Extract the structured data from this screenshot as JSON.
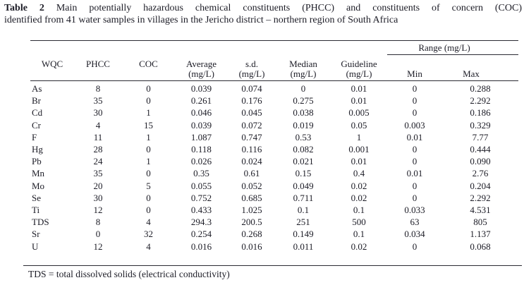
{
  "title": {
    "label": "Table 2",
    "line1_rest": "Main potentially hazardous chemical constituents (PHCC) and constituents of concern (COC)",
    "line2": "identified from 41 water samples in villages in the Jericho district – northern region of South Africa"
  },
  "table": {
    "range_header": "Range (mg/L)",
    "columns": [
      {
        "label": "WQC",
        "unit": ""
      },
      {
        "label": "PHCC",
        "unit": ""
      },
      {
        "label": "COC",
        "unit": ""
      },
      {
        "label": "Average",
        "unit": "(mg/L)"
      },
      {
        "label": "s.d.",
        "unit": "(mg/L)"
      },
      {
        "label": "Median",
        "unit": "(mg/L)"
      },
      {
        "label": "Guideline",
        "unit": "(mg/L)"
      },
      {
        "label": "Min",
        "unit": ""
      },
      {
        "label": "Max",
        "unit": ""
      }
    ],
    "rows": [
      [
        "As",
        "8",
        "0",
        "0.039",
        "0.074",
        "0",
        "0.01",
        "0",
        "0.288"
      ],
      [
        "Br",
        "35",
        "0",
        "0.261",
        "0.176",
        "0.275",
        "0.01",
        "0",
        "2.292"
      ],
      [
        "Cd",
        "30",
        "1",
        "0.046",
        "0.045",
        "0.038",
        "0.005",
        "0",
        "0.186"
      ],
      [
        "Cr",
        "4",
        "15",
        "0.039",
        "0.072",
        "0.019",
        "0.05",
        "0.003",
        "0.329"
      ],
      [
        "F",
        "11",
        "1",
        "1.087",
        "0.747",
        "0.53",
        "1",
        "0.01",
        "7.77"
      ],
      [
        "Hg",
        "28",
        "0",
        "0.118",
        "0.116",
        "0.082",
        "0.001",
        "0",
        "0.444"
      ],
      [
        "Pb",
        "24",
        "1",
        "0.026",
        "0.024",
        "0.021",
        "0.01",
        "0",
        "0.090"
      ],
      [
        "Mn",
        "35",
        "0",
        "0.35",
        "0.61",
        "0.15",
        "0.4",
        "0.01",
        "2.76"
      ],
      [
        "Mo",
        "20",
        "5",
        "0.055",
        "0.052",
        "0.049",
        "0.02",
        "0",
        "0.204"
      ],
      [
        "Se",
        "30",
        "0",
        "0.752",
        "0.685",
        "0.711",
        "0.02",
        "0",
        "2.292"
      ],
      [
        "Ti",
        "12",
        "0",
        "0.433",
        "1.025",
        "0.1",
        "0.1",
        "0.033",
        "4.531"
      ],
      [
        "TDS",
        "8",
        "4",
        "294.3",
        "200.5",
        "251",
        "500",
        "63",
        "805"
      ],
      [
        "Sr",
        "0",
        "32",
        "0.254",
        "0.268",
        "0.149",
        "0.1",
        "0.034",
        "1.137"
      ],
      [
        "U",
        "12",
        "4",
        "0.016",
        "0.016",
        "0.011",
        "0.02",
        "0",
        "0.068"
      ]
    ]
  },
  "footnote": "TDS = total dissolved solids (electrical conductivity)",
  "colors": {
    "background": "#ffffff",
    "text": "#1c1c26",
    "rule": "#2a2a33"
  }
}
